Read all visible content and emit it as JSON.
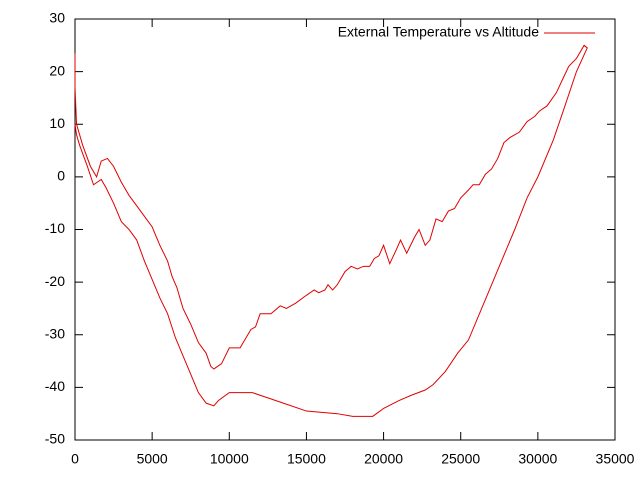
{
  "chart_data": {
    "type": "line",
    "x": [
      0,
      0,
      100,
      500,
      1000,
      1400,
      1700,
      2100,
      2500,
      3000,
      3500,
      4000,
      4500,
      5000,
      5500,
      6000,
      6300,
      6600,
      7000,
      7500,
      8000,
      8500,
      8800,
      9000,
      9500,
      10000,
      10700,
      11400,
      11700,
      12000,
      12700,
      13300,
      13700,
      14300,
      15000,
      15500,
      15800,
      16200,
      16400,
      16700,
      17000,
      17500,
      17900,
      18300,
      18700,
      19100,
      19400,
      19700,
      20000,
      20400,
      20800,
      21100,
      21500,
      22000,
      22300,
      22700,
      23000,
      23400,
      23800,
      24200,
      24600,
      25000,
      25500,
      25800,
      26200,
      26600,
      27000,
      27400,
      27800,
      28200,
      28800,
      29300,
      29800,
      30100,
      30600,
      31200,
      31600,
      32000,
      32500,
      33000,
      33200,
      32500,
      31700,
      31000,
      30000,
      29300,
      28500,
      27500,
      26500,
      25500,
      24800,
      24000,
      23200,
      22700,
      21800,
      21000,
      20000,
      19300,
      18000,
      17000,
      15000,
      13500,
      12500,
      11500,
      10000,
      9300,
      9000,
      8500,
      8000,
      7500,
      7000,
      6500,
      6000,
      5500,
      5000,
      4500,
      4000,
      3500,
      3000,
      2500,
      2000,
      1700,
      1200,
      800,
      300,
      100,
      0
    ],
    "series": [
      {
        "name": "External Temperature vs Altitude",
        "color": "#e00000",
        "values": [
          23.5,
          17,
          10,
          6,
          2,
          0,
          3,
          3.5,
          2,
          -1,
          -3.5,
          -5.5,
          -7.5,
          -9.5,
          -13,
          -16,
          -19,
          -21,
          -25,
          -28,
          -31.5,
          -33.5,
          -36,
          -36.5,
          -35.5,
          -32.5,
          -32.5,
          -29,
          -28.5,
          -26,
          -26,
          -24.5,
          -25,
          -24,
          -22.5,
          -21.5,
          -22,
          -21.5,
          -20.5,
          -21.5,
          -20.5,
          -18,
          -17,
          -17.5,
          -17,
          -17,
          -15.5,
          -15,
          -13,
          -16.5,
          -14,
          -12,
          -14.5,
          -11.5,
          -10,
          -13,
          -12,
          -8,
          -8.5,
          -6.5,
          -6,
          -4,
          -2.5,
          -1.5,
          -1.5,
          0.5,
          1.5,
          3.5,
          6.5,
          7.5,
          8.5,
          10.5,
          11.5,
          12.5,
          13.5,
          16,
          18.5,
          21,
          22.5,
          25,
          24.5,
          20,
          13,
          7,
          0,
          -4,
          -10,
          -17,
          -24,
          -31,
          -33.5,
          -37,
          -39.5,
          -40.5,
          -41.5,
          -42.5,
          -44,
          -45.5,
          -45.5,
          -45,
          -44.5,
          -43,
          -42,
          -41,
          -41,
          -42.5,
          -43.5,
          -43,
          -41,
          -37.5,
          -34,
          -30.5,
          -26,
          -23,
          -19.5,
          -16,
          -12,
          -10,
          -8.5,
          -5,
          -2,
          -0.5,
          -1.5,
          2,
          6,
          8,
          10
        ]
      }
    ],
    "xlim": [
      0,
      35000
    ],
    "xticks": [
      0,
      5000,
      10000,
      15000,
      20000,
      25000,
      30000,
      35000
    ],
    "ylim": [
      -50,
      30
    ],
    "yticks": [
      -50,
      -40,
      -30,
      -20,
      -10,
      0,
      10,
      20,
      30
    ],
    "legend": "top-right"
  }
}
